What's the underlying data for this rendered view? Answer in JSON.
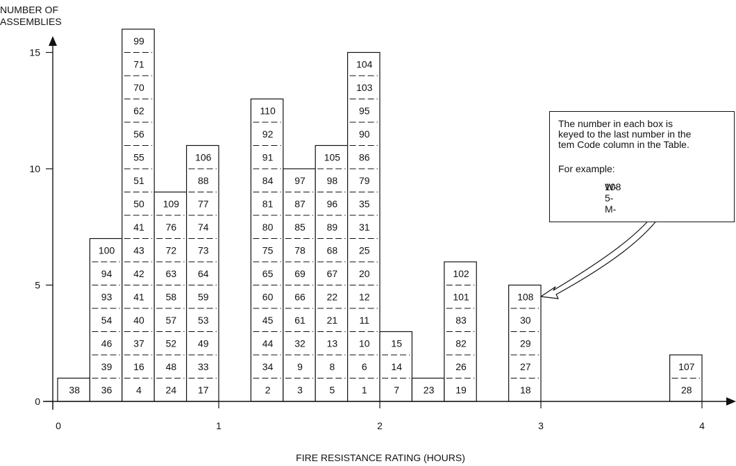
{
  "chart_data": {
    "type": "bar",
    "ylabel": "NUMBER OF\nASSEMBLIES",
    "xlabel": "FIRE RESISTANCE RATING (HOURS)",
    "xlim": [
      0,
      4
    ],
    "ylim": [
      0,
      15
    ],
    "xticks": [
      "0",
      "1",
      "2",
      "3",
      "4"
    ],
    "yticks": [
      "0",
      "5",
      "10",
      "15"
    ],
    "bin_width_hours": 0.2,
    "bars": [
      {
        "x0": 0.0,
        "items": [
          "38"
        ]
      },
      {
        "x0": 0.2,
        "items": [
          "36",
          "39",
          "46",
          "54",
          "93",
          "94",
          "100"
        ]
      },
      {
        "x0": 0.4,
        "items": [
          "4",
          "16",
          "37",
          "40",
          "41",
          "42",
          "43",
          "41",
          "50",
          "51",
          "55",
          "56",
          "62",
          "70",
          "71",
          "99"
        ]
      },
      {
        "x0": 0.6,
        "items": [
          "24",
          "48",
          "52",
          "57",
          "58",
          "63",
          "72",
          "76",
          "109"
        ]
      },
      {
        "x0": 0.8,
        "items": [
          "17",
          "33",
          "49",
          "53",
          "59",
          "64",
          "73",
          "74",
          "77",
          "88",
          "106"
        ]
      },
      {
        "x0": 1.2,
        "items": [
          "2",
          "34",
          "44",
          "45",
          "60",
          "65",
          "75",
          "80",
          "81",
          "84",
          "91",
          "92",
          "110"
        ]
      },
      {
        "x0": 1.4,
        "items": [
          "3",
          "9",
          "32",
          "61",
          "66",
          "69",
          "78",
          "85",
          "87",
          "97"
        ]
      },
      {
        "x0": 1.6,
        "items": [
          "5",
          "8",
          "13",
          "21",
          "22",
          "67",
          "68",
          "89",
          "96",
          "98",
          "105"
        ]
      },
      {
        "x0": 1.8,
        "items": [
          "1",
          "6",
          "10",
          "11",
          "12",
          "20",
          "25",
          "31",
          "35",
          "79",
          "86",
          "90",
          "95",
          "103",
          "104"
        ]
      },
      {
        "x0": 2.0,
        "items": [
          "7",
          "14",
          "15"
        ]
      },
      {
        "x0": 2.2,
        "items": [
          "23"
        ]
      },
      {
        "x0": 2.4,
        "items": [
          "19",
          "26",
          "82",
          "83",
          "101",
          "102"
        ]
      },
      {
        "x0": 2.8,
        "items": [
          "18",
          "27",
          "29",
          "30",
          "108"
        ]
      },
      {
        "x0": 3.8,
        "items": [
          "28",
          "107"
        ]
      }
    ],
    "annotation": {
      "text": "The number in each box is\nkeyed to the last number in the\ntem Code column in the Table.",
      "example_label": "For example:",
      "example_prefix": "W-5-M-",
      "example_code": "108",
      "points_to": "108"
    }
  }
}
